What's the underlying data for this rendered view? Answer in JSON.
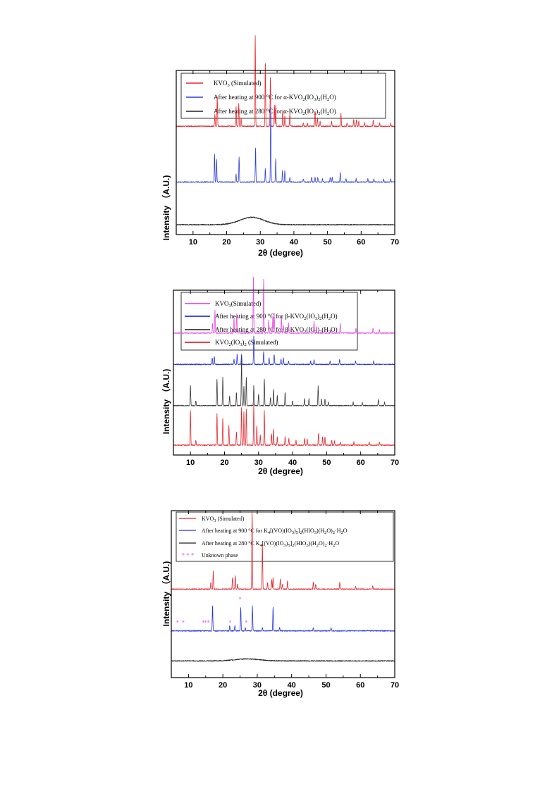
{
  "chart_data": [
    {
      "type": "line",
      "panel": 1,
      "xlabel": "2θ (degree)",
      "ylabel": "Intensity （A.U.)",
      "xlim": [
        5,
        70
      ],
      "xticks": [
        10,
        20,
        30,
        40,
        50,
        60,
        70
      ],
      "yticks_visible": false,
      "legend": [
        {
          "name": "KVO3 (Simulated)",
          "color": "#e8262b",
          "html": "KVO<tspan class='sub' dy='2'>3</tspan><tspan dy='-2'> (Simulated)</tspan>"
        },
        {
          "name": "After heating at 900 °C  for α-KVO2(IO3)2(H2O)",
          "color": "#2f3fe0"
        },
        {
          "name": "After heating at 280 °C  for α-KVO2(IO3)2(H2O)",
          "color": "#222222"
        }
      ],
      "series": [
        {
          "name": "KVO3 (Simulated)",
          "color": "#e8262b",
          "offset": 0.66,
          "peaks": [
            [
              16.5,
              0.07
            ],
            [
              17.2,
              0.18
            ],
            [
              22.8,
              0.12
            ],
            [
              23.6,
              0.14
            ],
            [
              24.3,
              0.05
            ],
            [
              28.5,
              0.55
            ],
            [
              31.5,
              0.38
            ],
            [
              33.0,
              0.3
            ],
            [
              34.2,
              0.13
            ],
            [
              34.6,
              0.13
            ],
            [
              36.7,
              0.1
            ],
            [
              37.3,
              0.06
            ],
            [
              38.8,
              0.08
            ],
            [
              42.8,
              0.02
            ],
            [
              44.0,
              0.02
            ],
            [
              46.3,
              0.09
            ],
            [
              47.0,
              0.05
            ],
            [
              47.8,
              0.03
            ],
            [
              51.2,
              0.03
            ],
            [
              54.0,
              0.08
            ],
            [
              55.8,
              0.02
            ],
            [
              57.8,
              0.04
            ],
            [
              58.6,
              0.04
            ],
            [
              59.3,
              0.03
            ],
            [
              61.0,
              0.02
            ],
            [
              63.6,
              0.04
            ],
            [
              65.5,
              0.02
            ],
            [
              68.8,
              0.02
            ]
          ]
        },
        {
          "name": "After heating at 900 °C  for α-KVO2(IO3)2(H2O)",
          "color": "#2f3fe0",
          "offset": 0.32,
          "peaks": [
            [
              16.4,
              0.17
            ],
            [
              17.0,
              0.14
            ],
            [
              22.8,
              0.05
            ],
            [
              23.7,
              0.15
            ],
            [
              28.6,
              0.21
            ],
            [
              31.5,
              0.08
            ],
            [
              33.1,
              0.46
            ],
            [
              34.6,
              0.14
            ],
            [
              36.6,
              0.07
            ],
            [
              37.3,
              0.07
            ],
            [
              38.8,
              0.03
            ],
            [
              42.8,
              0.02
            ],
            [
              45.3,
              0.03
            ],
            [
              46.3,
              0.03
            ],
            [
              47.1,
              0.03
            ],
            [
              48.5,
              0.02
            ],
            [
              50.8,
              0.03
            ],
            [
              51.4,
              0.03
            ],
            [
              53.8,
              0.06
            ],
            [
              55.5,
              0.02
            ],
            [
              58.5,
              0.02
            ],
            [
              62.0,
              0.02
            ],
            [
              63.8,
              0.02
            ],
            [
              66.7,
              0.02
            ],
            [
              68.8,
              0.02
            ]
          ]
        },
        {
          "name": "After heating at 280 °C  for α-KVO2(IO3)2(H2O)",
          "color": "#222222",
          "offset": 0.06,
          "hump": {
            "center": 27.5,
            "width": 5,
            "height": 0.045
          }
        }
      ]
    },
    {
      "type": "line",
      "panel": 2,
      "xlabel": "2θ (degree)",
      "ylabel": "Intensity （A.U.)",
      "xlim": [
        5,
        70
      ],
      "xticks": [
        10,
        20,
        30,
        40,
        50,
        60,
        70
      ],
      "yticks_visible": false,
      "legend": [
        {
          "name": "KVO3(Simulated)",
          "color": "#e94be6"
        },
        {
          "name": "After heating at 900 °C  for β-KVO2(IO3)2(H2O)",
          "color": "#2533e3"
        },
        {
          "name": "After heating at 280 °C  for β-KVO2(IO3)2(H2O)",
          "color": "#3a3a3a"
        },
        {
          "name": "KVO2(IO3)2 (Simulated)",
          "color": "#e8262b"
        }
      ],
      "series": [
        {
          "name": "KVO3(Simulated)",
          "color": "#e94be6",
          "offset": 0.74,
          "peaks": [
            [
              16.5,
              0.06
            ],
            [
              17.2,
              0.14
            ],
            [
              22.8,
              0.09
            ],
            [
              23.6,
              0.12
            ],
            [
              28.5,
              0.34
            ],
            [
              31.5,
              0.33
            ],
            [
              33.0,
              0.08
            ],
            [
              34.2,
              0.1
            ],
            [
              34.6,
              0.12
            ],
            [
              36.7,
              0.1
            ],
            [
              37.3,
              0.05
            ],
            [
              38.8,
              0.06
            ],
            [
              46.3,
              0.07
            ],
            [
              47.0,
              0.04
            ],
            [
              51.2,
              0.02
            ],
            [
              54.0,
              0.06
            ],
            [
              58.6,
              0.03
            ],
            [
              63.6,
              0.03
            ],
            [
              65.5,
              0.02
            ]
          ]
        },
        {
          "name": "After heating at 900 °C  for β-KVO2(IO3)2(H2O)",
          "color": "#2533e3",
          "offset": 0.55,
          "peaks": [
            [
              16.4,
              0.04
            ],
            [
              17.0,
              0.05
            ],
            [
              22.8,
              0.03
            ],
            [
              23.7,
              0.06
            ],
            [
              25.0,
              0.06
            ],
            [
              28.6,
              0.17
            ],
            [
              31.5,
              0.08
            ],
            [
              33.1,
              0.04
            ],
            [
              34.6,
              0.06
            ],
            [
              36.6,
              0.03
            ],
            [
              37.3,
              0.04
            ],
            [
              38.8,
              0.02
            ],
            [
              45.3,
              0.02
            ],
            [
              46.3,
              0.03
            ],
            [
              51.0,
              0.02
            ],
            [
              53.8,
              0.03
            ],
            [
              58.5,
              0.02
            ],
            [
              63.8,
              0.02
            ]
          ]
        },
        {
          "name": "After heating at 280 °C  for β-KVO2(IO3)2(H2O)",
          "color": "#3a3a3a",
          "offset": 0.3,
          "peaks": [
            [
              10.0,
              0.12
            ],
            [
              11.6,
              0.03
            ],
            [
              17.8,
              0.16
            ],
            [
              19.5,
              0.17
            ],
            [
              21.5,
              0.06
            ],
            [
              23.5,
              0.08
            ],
            [
              25.0,
              0.29
            ],
            [
              25.7,
              0.12
            ],
            [
              26.4,
              0.17
            ],
            [
              28.6,
              0.12
            ],
            [
              30.0,
              0.07
            ],
            [
              31.7,
              0.16
            ],
            [
              33.5,
              0.05
            ],
            [
              34.4,
              0.1
            ],
            [
              35.5,
              0.06
            ],
            [
              37.8,
              0.08
            ],
            [
              40.0,
              0.03
            ],
            [
              43.5,
              0.04
            ],
            [
              44.8,
              0.04
            ],
            [
              47.5,
              0.12
            ],
            [
              48.5,
              0.04
            ],
            [
              49.5,
              0.04
            ],
            [
              50.5,
              0.02
            ],
            [
              57.8,
              0.02
            ],
            [
              60.5,
              0.02
            ],
            [
              65.2,
              0.04
            ],
            [
              67.0,
              0.02
            ]
          ]
        },
        {
          "name": "KVO2(IO3)2 (Simulated)",
          "color": "#e8262b",
          "offset": 0.06,
          "peaks": [
            [
              10.0,
              0.21
            ],
            [
              11.6,
              0.03
            ],
            [
              17.8,
              0.19
            ],
            [
              19.5,
              0.16
            ],
            [
              21.3,
              0.12
            ],
            [
              23.5,
              0.08
            ],
            [
              25.0,
              0.23
            ],
            [
              25.7,
              0.2
            ],
            [
              26.4,
              0.22
            ],
            [
              28.6,
              0.25
            ],
            [
              29.5,
              0.12
            ],
            [
              30.5,
              0.06
            ],
            [
              31.7,
              0.21
            ],
            [
              33.8,
              0.07
            ],
            [
              34.4,
              0.1
            ],
            [
              35.5,
              0.05
            ],
            [
              37.8,
              0.05
            ],
            [
              38.9,
              0.04
            ],
            [
              41.0,
              0.03
            ],
            [
              43.5,
              0.04
            ],
            [
              44.3,
              0.04
            ],
            [
              47.6,
              0.07
            ],
            [
              48.8,
              0.05
            ],
            [
              49.5,
              0.05
            ],
            [
              51.5,
              0.03
            ],
            [
              52.3,
              0.03
            ],
            [
              54.0,
              0.02
            ],
            [
              58.0,
              0.02
            ],
            [
              62.5,
              0.02
            ],
            [
              65.5,
              0.02
            ]
          ]
        }
      ]
    },
    {
      "type": "line",
      "panel": 3,
      "xlabel": "2θ (degree)",
      "ylabel": "Intensity （A.U.)",
      "xlim": [
        5,
        70
      ],
      "xticks": [
        10,
        20,
        30,
        40,
        50,
        60,
        70
      ],
      "yticks_visible": false,
      "legend": [
        {
          "name": "KVO3 (Simulated)",
          "color": "#e8262b"
        },
        {
          "name": "After heating at 900 °C  for K4[(VO)(IO3)5]2(HIO3)(H2O)2·H2O",
          "color": "#2533e3"
        },
        {
          "name": "After heating at 280 °C  K4[(VO)(IO3)5]2(HIO3)(H2O)2·H2O",
          "color": "#222222"
        },
        {
          "name": "Unknown phase",
          "color": "#e94be6",
          "marker": "stars"
        }
      ],
      "series": [
        {
          "name": "KVO3 (Simulated)",
          "color": "#e8262b",
          "offset": 0.53,
          "peaks": [
            [
              16.5,
              0.04
            ],
            [
              17.2,
              0.11
            ],
            [
              22.8,
              0.07
            ],
            [
              23.6,
              0.08
            ],
            [
              24.3,
              0.03
            ],
            [
              28.5,
              0.47
            ],
            [
              31.5,
              0.27
            ],
            [
              33.0,
              0.04
            ],
            [
              34.2,
              0.06
            ],
            [
              34.6,
              0.07
            ],
            [
              36.7,
              0.06
            ],
            [
              37.3,
              0.03
            ],
            [
              38.8,
              0.05
            ],
            [
              46.3,
              0.04
            ],
            [
              47.0,
              0.03
            ],
            [
              54.0,
              0.04
            ],
            [
              58.6,
              0.02
            ],
            [
              63.6,
              0.02
            ]
          ]
        },
        {
          "name": "After heating at 900 °C  for K4[(VO)(IO3)5]2(HIO3)(H2O)2·H2O",
          "color": "#2533e3",
          "offset": 0.28,
          "peaks": [
            [
              17.0,
              0.15
            ],
            [
              22.0,
              0.03
            ],
            [
              23.5,
              0.03
            ],
            [
              25.2,
              0.14
            ],
            [
              26.5,
              0.02
            ],
            [
              28.6,
              0.15
            ],
            [
              31.5,
              0.02
            ],
            [
              34.6,
              0.14
            ],
            [
              36.5,
              0.02
            ],
            [
              46.3,
              0.02
            ],
            [
              51.5,
              0.02
            ]
          ],
          "unknown_phase_x": [
            7.0,
            8.7,
            14.5,
            15.2,
            16.0,
            22.3,
            25.2,
            27.0
          ]
        },
        {
          "name": "After heating at 280 °C  K4[(VO)(IO3)5]2(HIO3)(H2O)2·H2O",
          "color": "#222222",
          "offset": 0.1,
          "hump": {
            "center": 27.0,
            "width": 5,
            "height": 0.012
          }
        }
      ]
    }
  ]
}
